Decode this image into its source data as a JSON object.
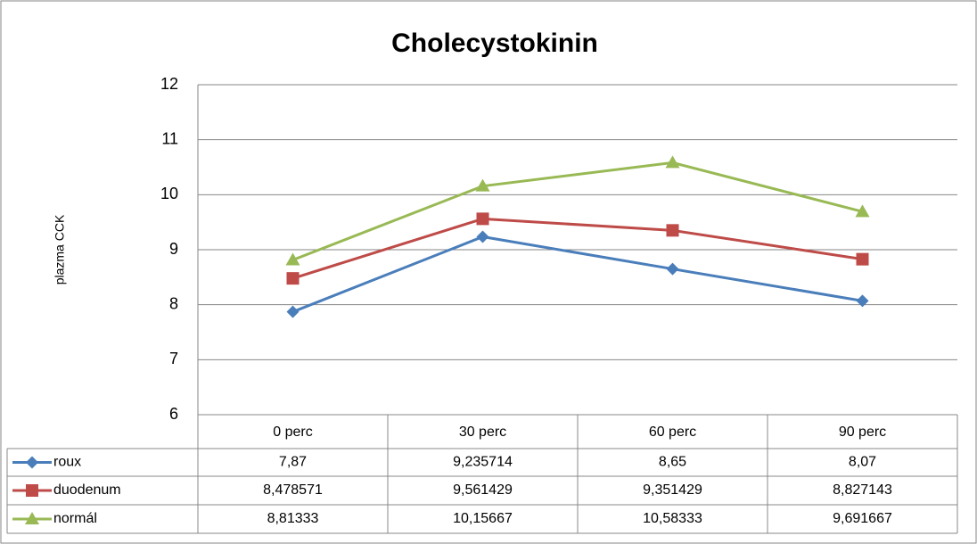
{
  "chart_data": {
    "type": "line",
    "title": "Cholecystokinin",
    "y_label": "plazma CCK",
    "categories": [
      "0 perc",
      "30 perc",
      "60 perc",
      "90 perc"
    ],
    "series": [
      {
        "name": "roux",
        "color": "#4a7ebb",
        "marker": "diamond",
        "values": [
          7.87,
          9.235714,
          8.65,
          8.07
        ],
        "value_labels": [
          "7,87",
          "9,235714",
          "8,65",
          "8,07"
        ]
      },
      {
        "name": "duodenum",
        "color": "#be4b48",
        "marker": "square",
        "values": [
          8.478571,
          9.561429,
          9.351429,
          8.827143
        ],
        "value_labels": [
          "8,478571",
          "9,561429",
          "9,351429",
          "8,827143"
        ]
      },
      {
        "name": "normál",
        "color": "#98b954",
        "marker": "triangle",
        "values": [
          8.81333,
          10.15667,
          10.58333,
          9.691667
        ],
        "value_labels": [
          "8,81333",
          "10,15667",
          "10,58333",
          "9,691667"
        ]
      }
    ],
    "ylim": [
      6,
      12
    ],
    "yticks": [
      6,
      7,
      8,
      9,
      10,
      11,
      12
    ],
    "grid": true,
    "data_table": true
  }
}
